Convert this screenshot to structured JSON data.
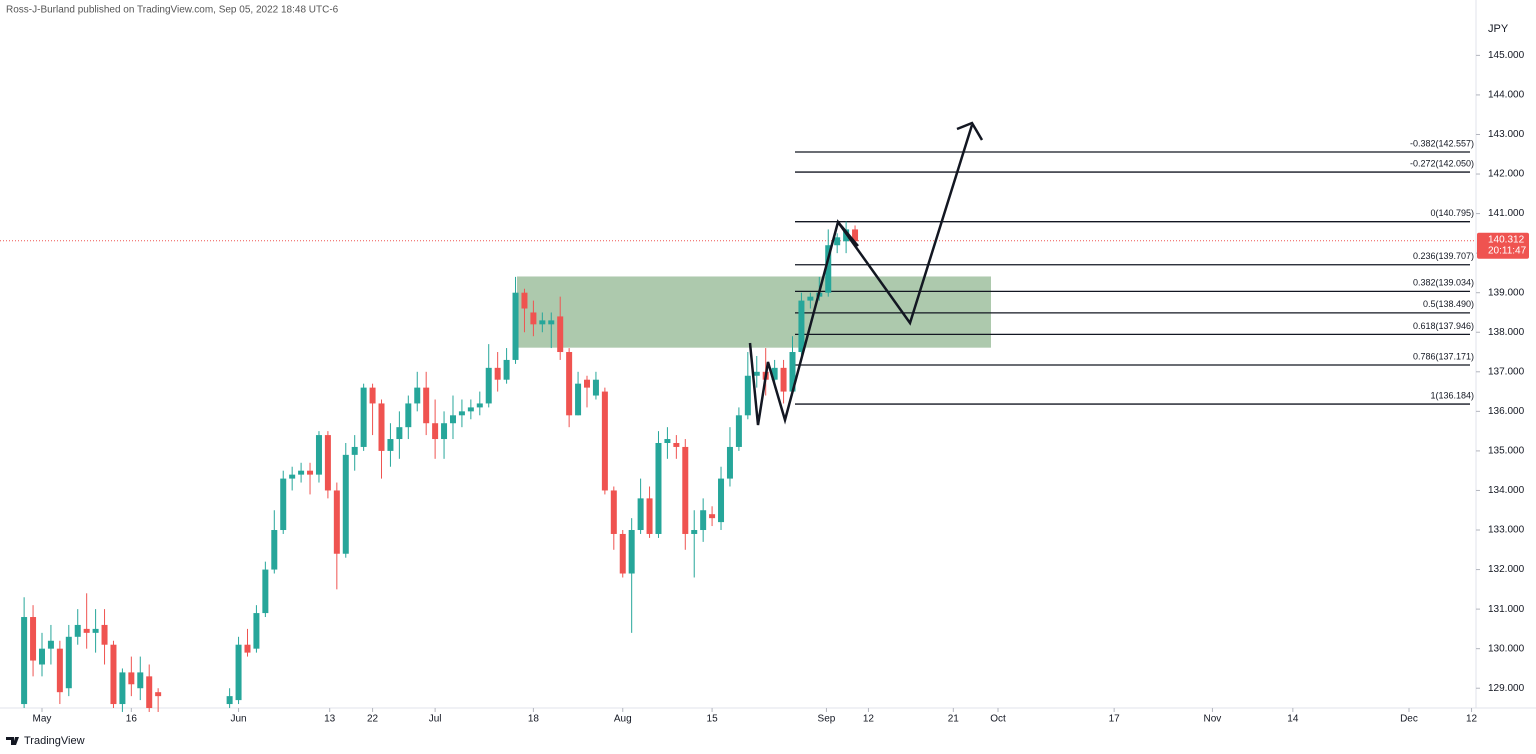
{
  "chart_data": {
    "type": "candlestick",
    "header": "Ross-J-Burland published on TradingView.com, Sep 05, 2022 18:48 UTC-6",
    "currency": "JPY",
    "brand": "TradingView",
    "up_color": "#26a69a",
    "down_color": "#ef5350",
    "x": [
      0,
      1,
      2,
      3,
      4,
      5,
      6,
      7,
      8,
      9,
      10,
      11,
      12,
      13,
      14,
      15,
      23,
      24,
      25,
      26,
      27,
      28,
      29,
      30,
      31,
      32,
      33,
      34,
      35,
      36,
      37,
      38,
      39,
      40,
      41,
      42,
      43,
      44,
      45,
      46,
      47,
      48,
      49,
      50,
      51,
      52,
      53,
      54,
      55,
      56,
      57,
      58,
      59,
      60,
      61,
      62,
      63,
      64,
      65,
      66,
      67,
      68,
      69,
      70,
      71,
      72,
      73,
      74,
      75,
      76,
      77,
      78,
      79,
      80,
      81,
      82,
      83,
      84,
      85,
      86,
      87,
      88,
      89,
      90,
      91,
      92,
      93
    ],
    "open": [
      128.6,
      130.8,
      129.6,
      130.0,
      130.0,
      129.0,
      130.3,
      130.5,
      130.4,
      130.6,
      130.1,
      128.6,
      129.4,
      129.0,
      129.3,
      128.9,
      128.6,
      128.7,
      130.1,
      130.0,
      130.9,
      132.0,
      133.0,
      134.3,
      134.4,
      134.5,
      134.4,
      135.4,
      134.0,
      132.4,
      134.9,
      135.1,
      136.6,
      136.2,
      135.0,
      135.3,
      135.6,
      136.2,
      136.6,
      135.7,
      135.3,
      135.7,
      135.9,
      136.0,
      136.1,
      136.2,
      137.1,
      136.8,
      137.3,
      139.0,
      138.5,
      138.2,
      138.2,
      138.4,
      137.5,
      135.9,
      136.8,
      136.4,
      136.5,
      134.0,
      132.9,
      131.9,
      133.0,
      133.8,
      132.9,
      135.2,
      135.2,
      135.1,
      132.9,
      133.0,
      133.4,
      133.2,
      134.3,
      135.1,
      135.9,
      136.9,
      137.0,
      136.8,
      137.1,
      136.5,
      137.5,
      138.8,
      138.9,
      139.0,
      140.2,
      140.3,
      140.6
    ],
    "high": [
      131.3,
      131.1,
      130.4,
      130.6,
      130.2,
      130.6,
      131.0,
      131.4,
      131.0,
      131.0,
      130.2,
      129.5,
      129.8,
      129.8,
      129.6,
      129.0,
      129.0,
      130.3,
      130.5,
      131.1,
      132.2,
      133.5,
      134.5,
      134.6,
      134.7,
      134.7,
      135.5,
      135.5,
      134.2,
      135.2,
      135.4,
      136.7,
      136.7,
      136.3,
      135.7,
      136.0,
      136.4,
      137.0,
      137.0,
      136.3,
      136.0,
      136.4,
      136.3,
      136.3,
      136.5,
      137.7,
      137.5,
      137.6,
      139.4,
      139.1,
      138.8,
      138.5,
      138.5,
      138.9,
      137.6,
      137.0,
      136.9,
      137.0,
      136.6,
      134.1,
      133.0,
      133.3,
      134.3,
      134.1,
      135.5,
      135.6,
      135.4,
      135.3,
      133.5,
      133.8,
      133.6,
      134.6,
      135.6,
      136.1,
      137.5,
      137.4,
      137.6,
      137.3,
      137.3,
      137.9,
      139.0,
      139.0,
      139.4,
      140.6,
      140.5,
      140.8,
      140.7
    ],
    "low": [
      128.5,
      129.3,
      129.3,
      129.6,
      128.6,
      128.8,
      130.1,
      130.0,
      129.9,
      129.6,
      128.5,
      128.4,
      128.8,
      128.7,
      128.4,
      128.4,
      128.5,
      128.6,
      129.8,
      129.9,
      130.8,
      131.9,
      132.9,
      134.0,
      134.2,
      133.9,
      134.2,
      133.8,
      131.5,
      132.3,
      134.5,
      135.0,
      135.4,
      134.3,
      134.6,
      134.8,
      135.3,
      136.0,
      135.4,
      134.8,
      134.8,
      135.3,
      135.6,
      135.8,
      135.9,
      136.1,
      136.5,
      136.7,
      137.2,
      138.0,
      137.9,
      138.0,
      137.6,
      137.3,
      135.6,
      135.9,
      136.1,
      136.3,
      133.9,
      132.5,
      131.8,
      130.4,
      132.9,
      132.8,
      132.8,
      134.8,
      134.8,
      132.5,
      131.8,
      132.7,
      133.1,
      133.0,
      134.1,
      135.0,
      135.8,
      136.6,
      136.4,
      136.6,
      136.2,
      136.4,
      137.4,
      138.6,
      138.8,
      138.9,
      140.0,
      140.0,
      140.2
    ],
    "close": [
      130.8,
      129.7,
      130.0,
      130.2,
      128.9,
      130.3,
      130.6,
      130.4,
      130.5,
      130.1,
      128.6,
      129.4,
      129.1,
      129.4,
      128.5,
      128.8,
      128.8,
      130.1,
      129.9,
      130.9,
      132.0,
      133.0,
      134.3,
      134.4,
      134.5,
      134.4,
      135.4,
      134.0,
      132.4,
      134.9,
      135.1,
      136.6,
      136.2,
      135.0,
      135.3,
      135.6,
      136.2,
      136.6,
      135.7,
      135.3,
      135.7,
      135.9,
      136.0,
      136.1,
      136.2,
      137.1,
      136.8,
      137.3,
      139.0,
      138.6,
      138.2,
      138.3,
      138.3,
      137.5,
      135.9,
      136.7,
      136.6,
      136.8,
      134.0,
      132.9,
      131.9,
      133.0,
      133.8,
      132.9,
      135.2,
      135.3,
      135.1,
      132.9,
      133.0,
      133.5,
      133.3,
      134.3,
      135.1,
      135.9,
      136.9,
      137.0,
      136.8,
      137.1,
      136.5,
      137.5,
      138.8,
      138.9,
      139.0,
      140.2,
      140.4,
      140.6,
      140.3
    ],
    "xlim": [
      -2.7,
      162.5
    ],
    "xticks": [
      {
        "value": 2,
        "label": "May"
      },
      {
        "value": 12,
        "label": "16"
      },
      {
        "value": 24,
        "label": "Jun"
      },
      {
        "value": 34.2,
        "label": "13"
      },
      {
        "value": 39,
        "label": "22"
      },
      {
        "value": 46,
        "label": "Jul"
      },
      {
        "value": 57,
        "label": "18"
      },
      {
        "value": 67,
        "label": "Aug"
      },
      {
        "value": 77,
        "label": "15"
      },
      {
        "value": 89.8,
        "label": "Sep"
      },
      {
        "value": 94.5,
        "label": "12"
      },
      {
        "value": 104,
        "label": "21"
      },
      {
        "value": 109,
        "label": "Oct"
      },
      {
        "value": 122,
        "label": "17"
      },
      {
        "value": 133,
        "label": "Nov"
      },
      {
        "value": 142,
        "label": "14"
      },
      {
        "value": 155,
        "label": "Dec"
      },
      {
        "value": 162,
        "label": "12"
      }
    ],
    "ylim": [
      146.4,
      128.5
    ],
    "yticks": [
      {
        "value": 129,
        "label": "129.000"
      },
      {
        "value": 130,
        "label": "130.000"
      },
      {
        "value": 131,
        "label": "131.000"
      },
      {
        "value": 132,
        "label": "132.000"
      },
      {
        "value": 133,
        "label": "133.000"
      },
      {
        "value": 134,
        "label": "134.000"
      },
      {
        "value": 135,
        "label": "135.000"
      },
      {
        "value": 136,
        "label": "136.000"
      },
      {
        "value": 137,
        "label": "137.000"
      },
      {
        "value": 138,
        "label": "138.000"
      },
      {
        "value": 139,
        "label": "139.000"
      },
      {
        "value": 140,
        "label": "140.000"
      },
      {
        "value": 141,
        "label": "141.000"
      },
      {
        "value": 142,
        "label": "142.000"
      },
      {
        "value": 143,
        "label": "143.000"
      },
      {
        "value": 144,
        "label": "144.000"
      },
      {
        "value": 145,
        "label": "145.000"
      }
    ],
    "last_price": 140.312,
    "countdown": "20:11:47",
    "zone": {
      "from": 137.61,
      "to": 139.41,
      "color": "#a9c6a9"
    },
    "fib_levels": [
      {
        "label": "-0.382(142.557)",
        "value": 142.557
      },
      {
        "label": "-0.272(142.050)",
        "value": 142.05
      },
      {
        "label": "0(140.795)",
        "value": 140.795
      },
      {
        "label": "0.236(139.707)",
        "value": 139.707
      },
      {
        "label": "0.382(139.034)",
        "value": 139.034
      },
      {
        "label": "0.5(138.490)",
        "value": 138.49
      },
      {
        "label": "0.618(137.946)",
        "value": 137.946
      },
      {
        "label": "0.786(137.171)",
        "value": 137.171
      },
      {
        "label": "1(136.184)",
        "value": 136.184
      }
    ]
  }
}
